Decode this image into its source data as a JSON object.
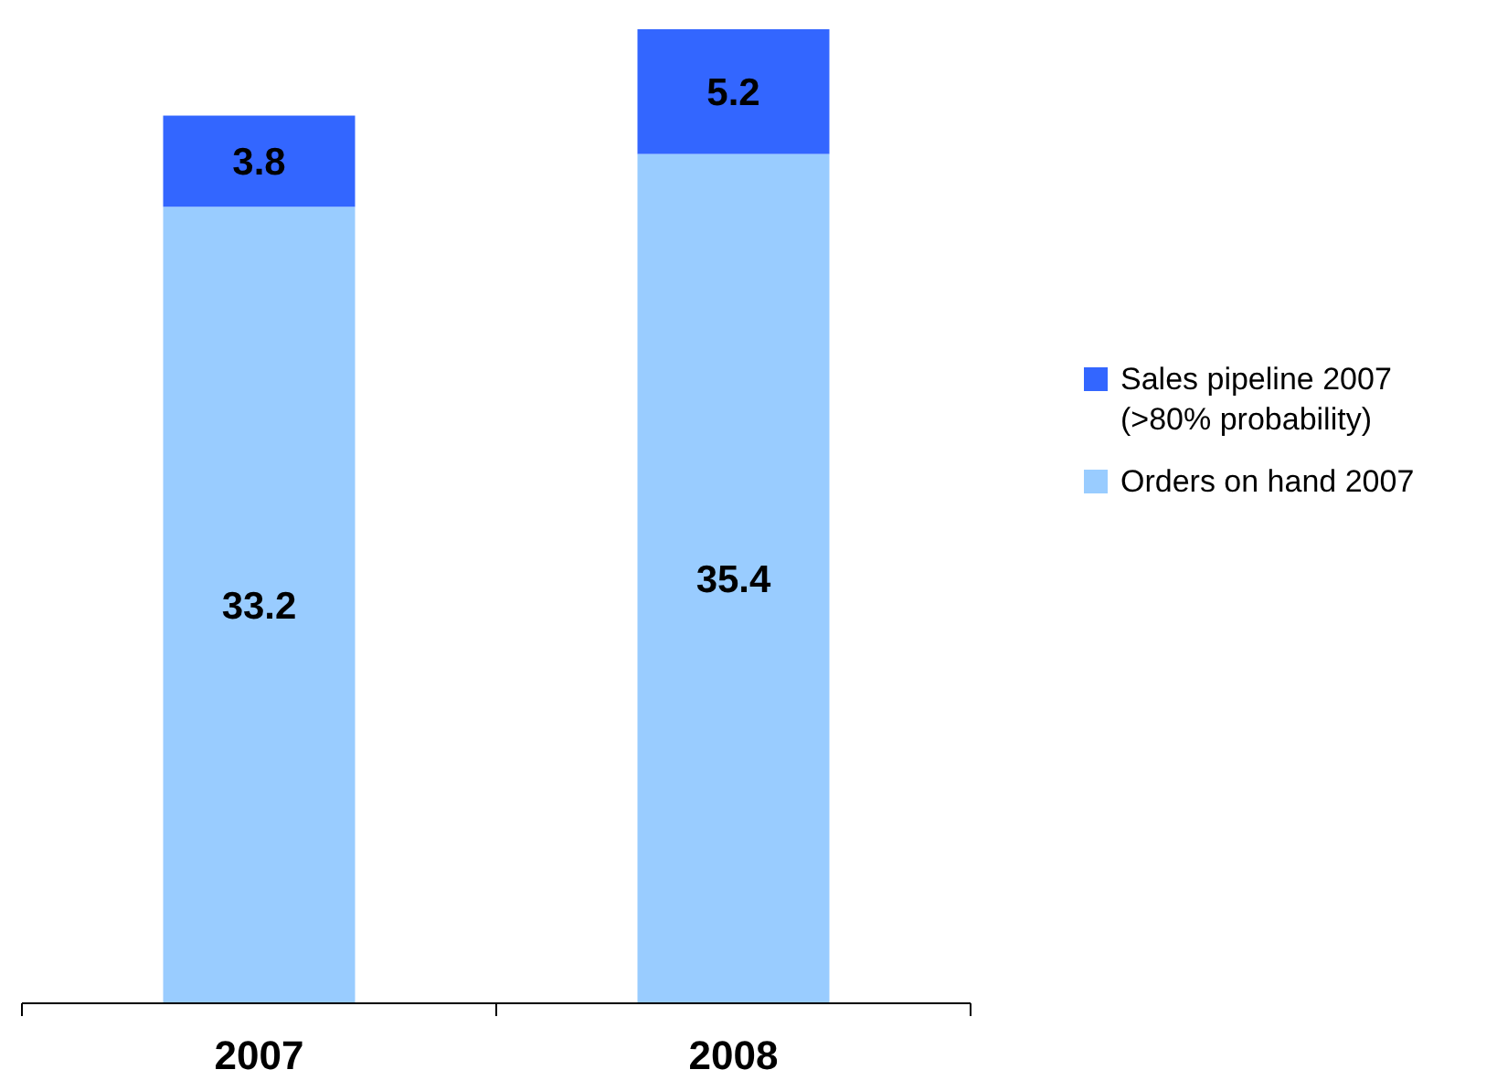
{
  "chart_data": {
    "type": "bar",
    "stacked": true,
    "categories": [
      "2007",
      "2008"
    ],
    "data_labels": true,
    "legend": "right",
    "series": [
      {
        "name": "Orders on hand 2007",
        "color": "#99ccff",
        "values": [
          33.2,
          35.4
        ]
      },
      {
        "name": "Sales pipeline 2007 (>80% probability)",
        "color": "#3366ff",
        "values": [
          3.8,
          5.2
        ]
      }
    ]
  }
}
